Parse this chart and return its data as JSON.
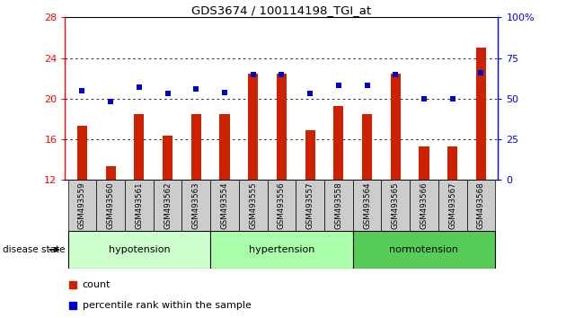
{
  "title": "GDS3674 / 100114198_TGI_at",
  "samples": [
    "GSM493559",
    "GSM493560",
    "GSM493561",
    "GSM493562",
    "GSM493563",
    "GSM493554",
    "GSM493555",
    "GSM493556",
    "GSM493557",
    "GSM493558",
    "GSM493564",
    "GSM493565",
    "GSM493566",
    "GSM493567",
    "GSM493568"
  ],
  "bar_values": [
    17.3,
    13.3,
    18.5,
    16.3,
    18.5,
    18.5,
    22.5,
    22.5,
    16.9,
    19.3,
    18.5,
    22.5,
    15.3,
    15.3,
    25.0
  ],
  "dot_values": [
    55,
    48,
    57,
    53,
    56,
    54,
    65,
    65,
    53,
    58,
    58,
    65,
    50,
    50,
    66
  ],
  "bar_bottom": 12,
  "ylim_left": [
    12,
    28
  ],
  "ylim_right": [
    0,
    100
  ],
  "yticks_left": [
    12,
    16,
    20,
    24,
    28
  ],
  "yticks_right": [
    0,
    25,
    50,
    75,
    100
  ],
  "ytick_right_labels": [
    "0",
    "25",
    "50",
    "75",
    "100%"
  ],
  "groups": [
    {
      "label": "hypotension",
      "start": 0,
      "end": 5,
      "color": "#ccffcc"
    },
    {
      "label": "hypertension",
      "start": 5,
      "end": 10,
      "color": "#aaffaa"
    },
    {
      "label": "normotension",
      "start": 10,
      "end": 15,
      "color": "#55cc55"
    }
  ],
  "bar_color": "#cc2200",
  "dot_color": "#0000cc",
  "label_bg_color": "#cccccc",
  "disease_label": "disease state",
  "legend_count": "count",
  "legend_percentile": "percentile rank within the sample",
  "bar_width": 0.35
}
